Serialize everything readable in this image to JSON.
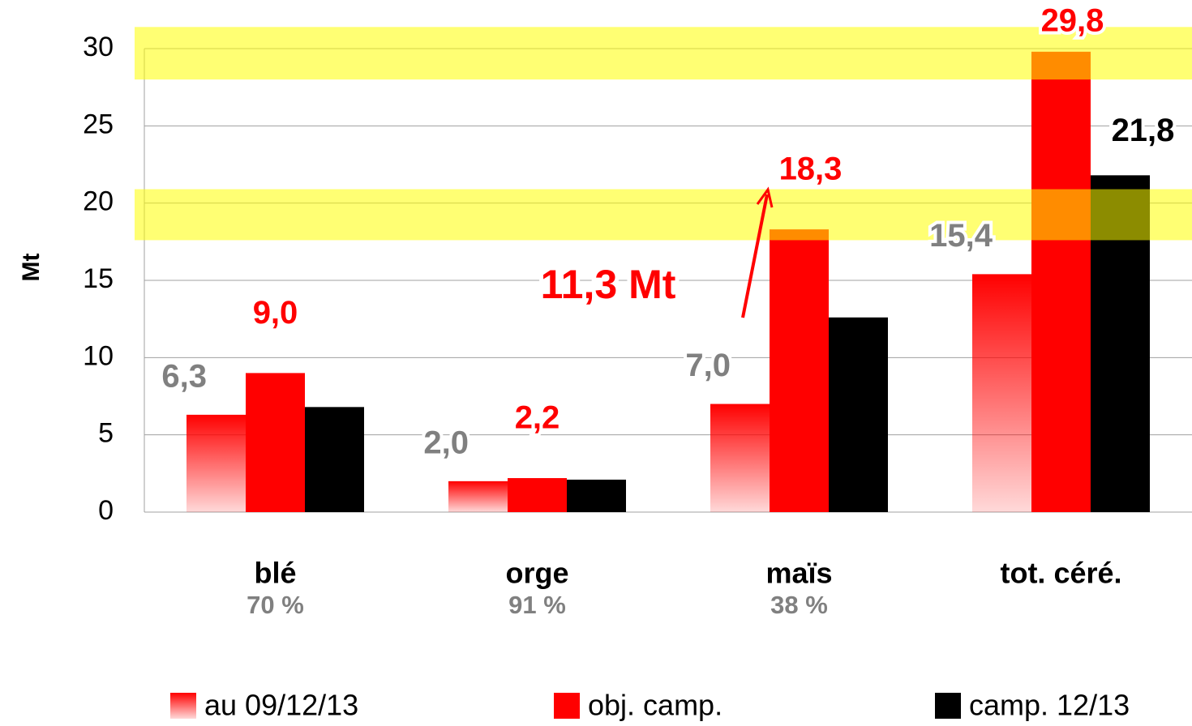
{
  "chart_data": {
    "type": "bar",
    "y_label": "Mt",
    "categories": [
      "blé",
      "orge",
      "maïs",
      "tot. céré."
    ],
    "category_sublabels": [
      "70 %",
      "91 %",
      "38 %",
      null
    ],
    "series": [
      {
        "name": "au 09/12/13",
        "color": "#ff0000",
        "gradient": true,
        "values": [
          6.3,
          2.0,
          7.0,
          15.4
        ],
        "value_labels": [
          "6,3",
          "2,0",
          "7,0",
          "15,4"
        ],
        "label_color": "#808080"
      },
      {
        "name": "obj. camp.",
        "color": "#ff0000",
        "values": [
          9.0,
          2.2,
          18.3,
          29.8
        ],
        "value_labels": [
          "9,0",
          "2,2",
          "18,3",
          "29,8"
        ],
        "label_color": "#ff0000"
      },
      {
        "name": "camp. 12/13",
        "color": "#000000",
        "values": [
          6.8,
          2.1,
          12.6,
          21.8
        ],
        "value_labels": [
          null,
          null,
          null,
          "21,8"
        ],
        "label_color": "#000000"
      }
    ],
    "annotation": "11,3 Mt",
    "highlight_bands": [
      [
        28.0,
        31.4
      ],
      [
        17.6,
        20.9
      ]
    ],
    "highlight_color": "#ffff00",
    "ylim": [
      0,
      30
    ],
    "yticks": [
      0,
      5,
      10,
      15,
      20,
      25,
      30
    ],
    "grid": true
  }
}
